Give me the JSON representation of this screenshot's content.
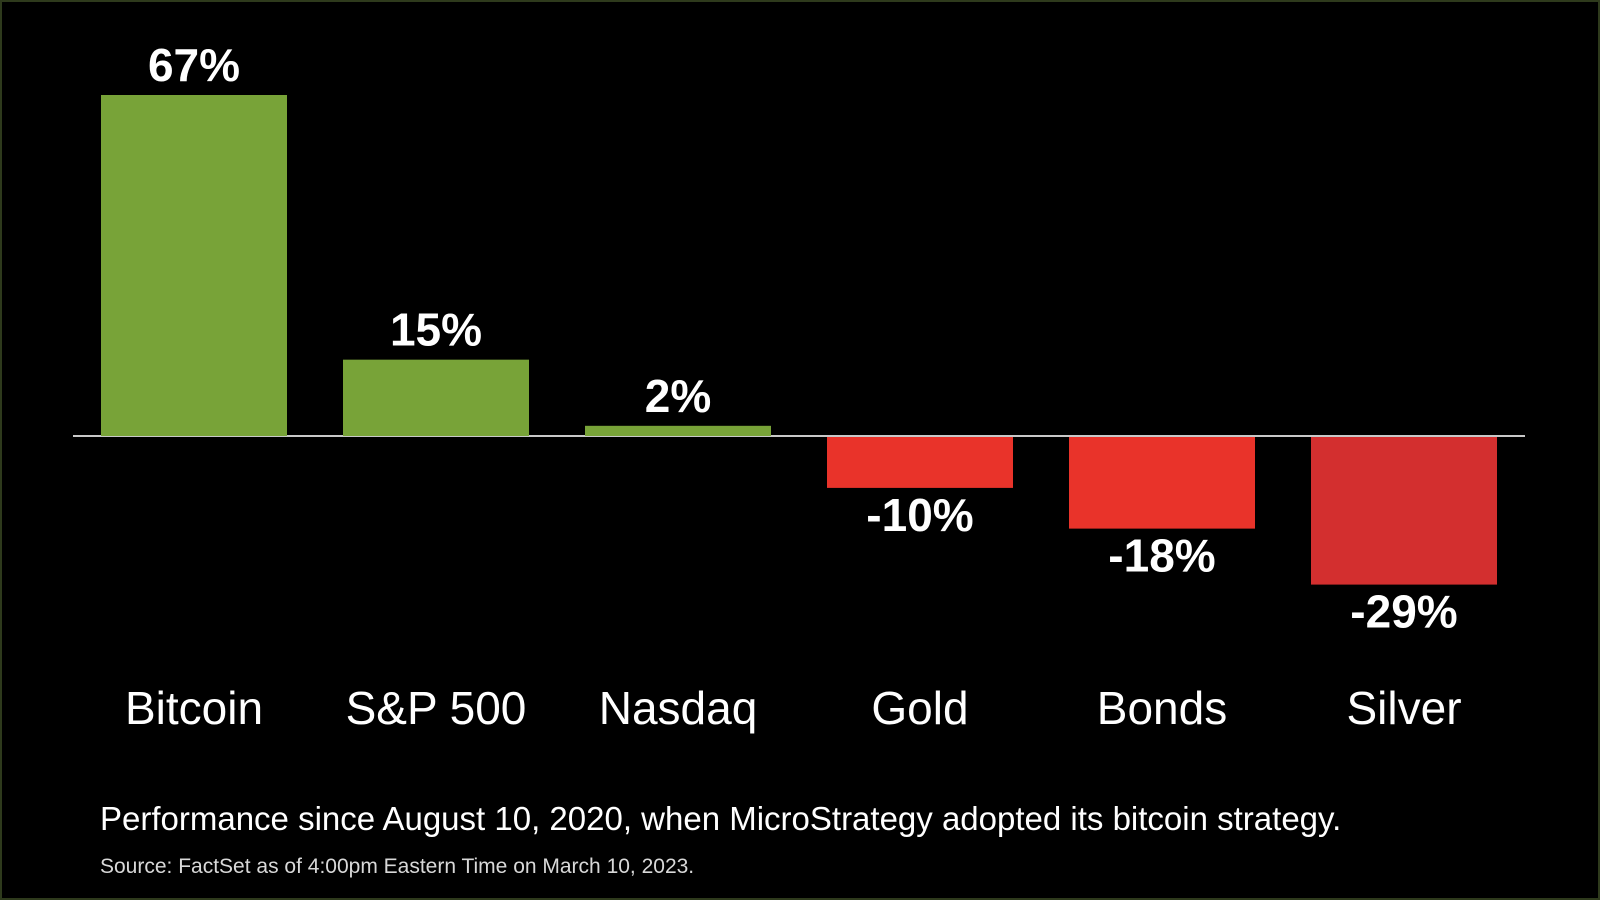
{
  "chart_data": {
    "type": "bar",
    "categories": [
      "Bitcoin",
      "S&P 500",
      "Nasdaq",
      "Gold",
      "Bonds",
      "Silver"
    ],
    "values": [
      67,
      15,
      2,
      -10,
      -18,
      -29
    ],
    "value_labels": [
      "67%",
      "15%",
      "2%",
      "-10%",
      "-18%",
      "-29%"
    ],
    "ylim": [
      -29,
      67
    ],
    "grid": false,
    "colors": {
      "positive": "#78a338",
      "negative": [
        "#e9332a",
        "#e9332a",
        "#d32f2f"
      ],
      "baseline": "#c8c8c8",
      "text": "#ffffff"
    }
  },
  "caption": "Performance since August 10, 2020, when MicroStrategy adopted its bitcoin strategy.",
  "source": "Source: FactSet as of 4:00pm Eastern Time on March 10, 2023."
}
